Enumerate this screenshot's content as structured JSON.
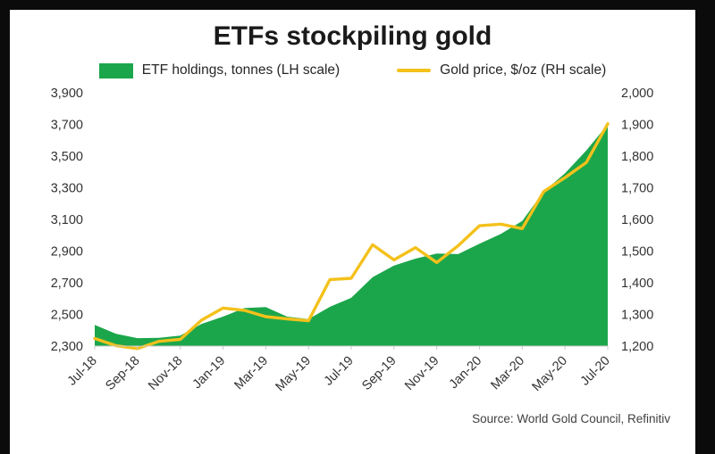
{
  "source": "Source: World Gold Council, Refinitiv",
  "colors": {
    "frame": "#0b0b0b",
    "canvas": "#ffffff",
    "area_green": "#1ca64b",
    "line_gold": "#f3c11b",
    "title_text": "#1a1a1a",
    "axis_text": "#333333"
  },
  "chart_data": {
    "type": "combo-area-line-dual-axis",
    "title": "ETFs stockpiling gold",
    "grid": false,
    "legend_position": "top",
    "x": [
      "Jul-18",
      "Aug-18",
      "Sep-18",
      "Oct-18",
      "Nov-18",
      "Dec-18",
      "Jan-19",
      "Feb-19",
      "Mar-19",
      "Apr-19",
      "May-19",
      "Jun-19",
      "Jul-19",
      "Aug-19",
      "Sep-19",
      "Oct-19",
      "Nov-19",
      "Dec-19",
      "Jan-20",
      "Feb-20",
      "Mar-20",
      "Apr-20",
      "May-20",
      "Jun-20",
      "Jul-20"
    ],
    "x_tick_every": 2,
    "x_tick_labels": [
      "Jul-18",
      "Sep-18",
      "Nov-18",
      "Jan-19",
      "Mar-19",
      "May-19",
      "Jul-19",
      "Sep-19",
      "Nov-19",
      "Jan-20",
      "Mar-20",
      "May-20",
      "Jul-20"
    ],
    "series": [
      {
        "name": "ETF holdings, tonnes (LH scale)",
        "type": "area",
        "axis": "left",
        "color": "#1ca64b",
        "values": [
          2434,
          2377,
          2350,
          2352,
          2366,
          2440,
          2486,
          2540,
          2546,
          2486,
          2470,
          2548,
          2605,
          2735,
          2808,
          2852,
          2885,
          2881,
          2947,
          3008,
          3090,
          3276,
          3392,
          3536,
          3700
        ]
      },
      {
        "name": "Gold price, $/oz (RH scale)",
        "type": "line",
        "axis": "right",
        "color": "#f3c11b",
        "values": [
          1224,
          1201,
          1192,
          1215,
          1221,
          1282,
          1320,
          1313,
          1293,
          1286,
          1280,
          1410,
          1414,
          1520,
          1472,
          1511,
          1464,
          1517,
          1580,
          1585,
          1571,
          1688,
          1732,
          1780,
          1902
        ]
      }
    ],
    "left_axis": {
      "min": 2300,
      "max": 3900,
      "step": 200,
      "ticks": [
        "2,300",
        "2,500",
        "2,700",
        "2,900",
        "3,100",
        "3,300",
        "3,500",
        "3,700",
        "3,900"
      ]
    },
    "right_axis": {
      "min": 1200,
      "max": 2000,
      "step": 100,
      "ticks": [
        "1,200",
        "1,300",
        "1,400",
        "1,500",
        "1,600",
        "1,700",
        "1,800",
        "1,900",
        "2,000"
      ]
    }
  }
}
